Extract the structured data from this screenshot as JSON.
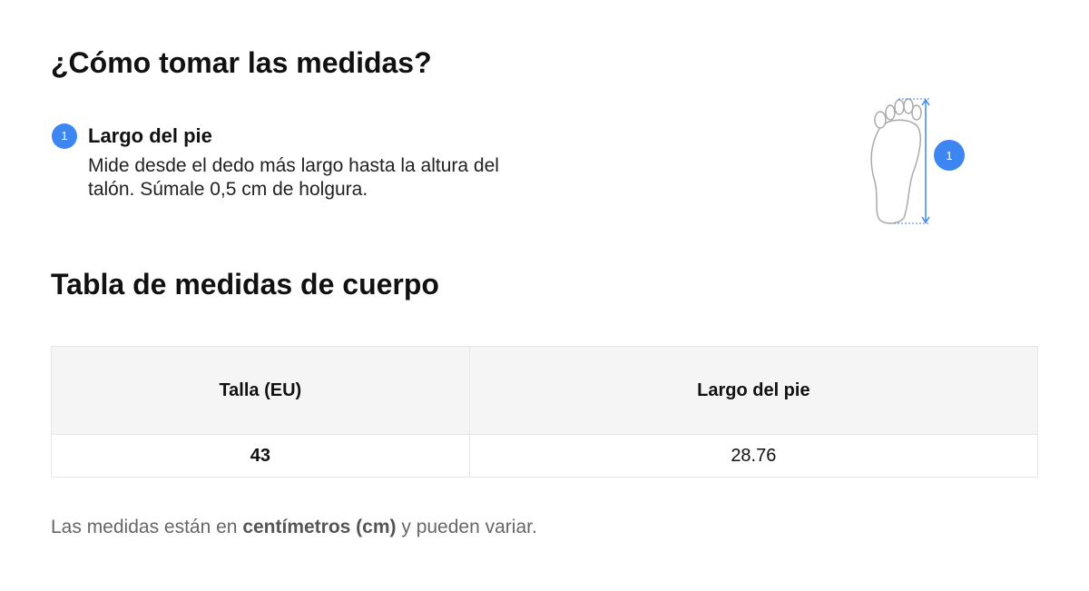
{
  "header": {
    "title": "¿Cómo tomar las medidas?"
  },
  "steps": [
    {
      "number": "1",
      "label": "Largo del pie",
      "description": "Mide desde el dedo más largo hasta la altura del talón. Súmale 0,5 cm de holgura."
    }
  ],
  "illustration": {
    "badge": "1"
  },
  "table": {
    "title": "Tabla de medidas de cuerpo",
    "headers": [
      "Talla (EU)",
      "Largo del pie"
    ],
    "rows": [
      [
        43,
        28.76
      ]
    ]
  },
  "footnote": {
    "before": "Las medidas están en ",
    "bold": "centímetros (cm)",
    "after": " y pueden variar."
  }
}
